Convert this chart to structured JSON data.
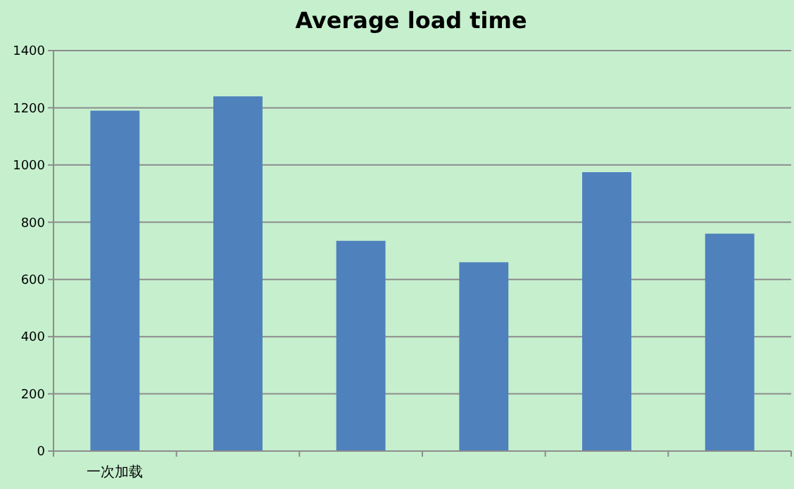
{
  "chart_data": {
    "type": "bar",
    "title": "Average load time",
    "categories": [
      "一次加载",
      null,
      null,
      null,
      null,
      null
    ],
    "values": [
      1190,
      1240,
      735,
      660,
      975,
      760
    ],
    "color": "#4f81bd",
    "ylim": [
      0,
      1400
    ],
    "yticks": [
      0,
      200,
      400,
      600,
      800,
      1000,
      1200,
      1400
    ],
    "grid": "y"
  }
}
